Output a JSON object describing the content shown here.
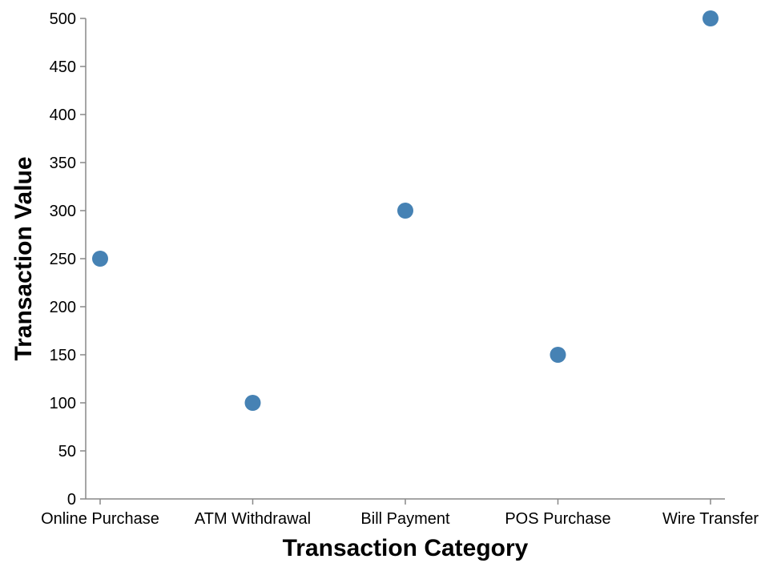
{
  "chart_data": {
    "type": "scatter",
    "categories": [
      "Online Purchase",
      "ATM Withdrawal",
      "Bill Payment",
      "POS Purchase",
      "Wire Transfer"
    ],
    "values": [
      250,
      100,
      300,
      150,
      500
    ],
    "xlabel": "Transaction Category",
    "ylabel": "Transaction Value",
    "ylim": [
      0,
      500
    ],
    "yticks": [
      0,
      50,
      100,
      150,
      200,
      250,
      300,
      350,
      400,
      450,
      500
    ],
    "grid": false,
    "point_color": "#4682b4"
  }
}
